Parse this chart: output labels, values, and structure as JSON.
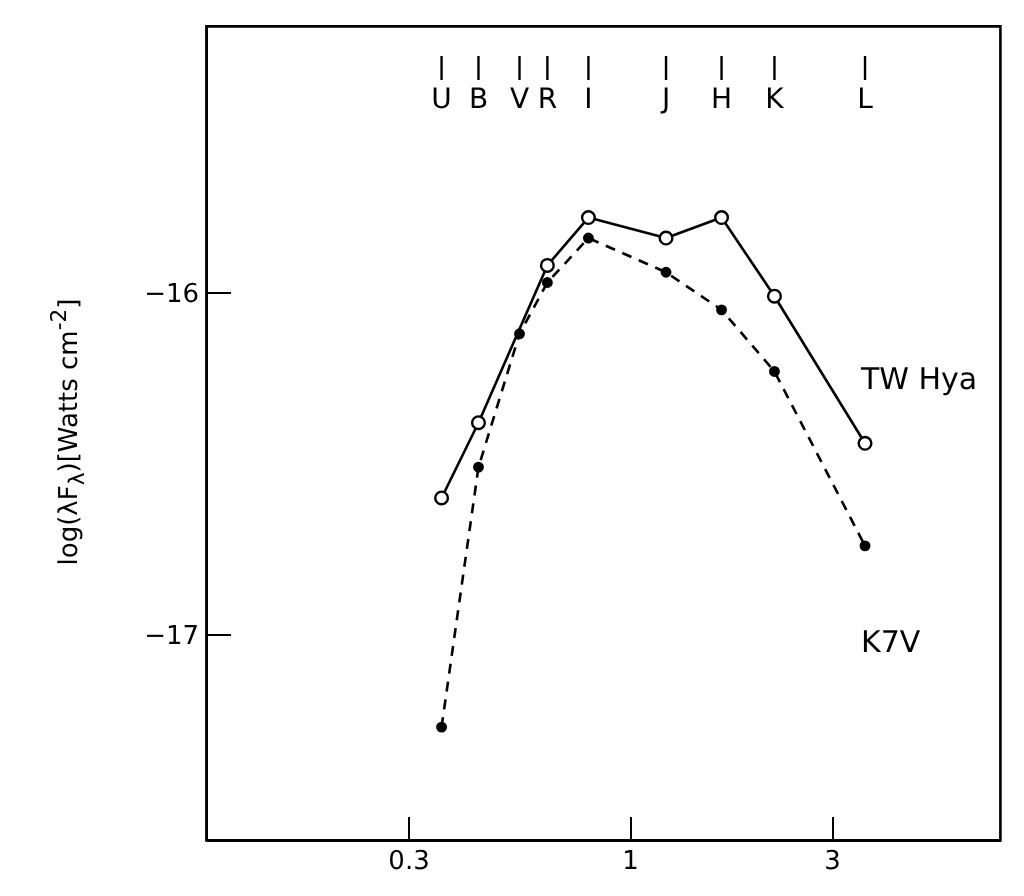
{
  "chart_data": {
    "type": "line",
    "ylabel": "log(λF$_{λ}$)[Watts cm$^{-2}$]",
    "xlim": [
      0.1,
      7.5
    ],
    "xticks": [
      0.3,
      1,
      3
    ],
    "log": "x",
    "ylim": [
      -17.6,
      -15.22
    ],
    "yticks": [
      -16,
      -17
    ],
    "ref_lines": [
      {
        "axis": "x",
        "value": 0.36,
        "label": "U"
      },
      {
        "axis": "x",
        "value": 0.44,
        "label": "B"
      },
      {
        "axis": "x",
        "value": 0.55,
        "label": "V"
      },
      {
        "axis": "x",
        "value": 0.64,
        "label": "R"
      },
      {
        "axis": "x",
        "value": 0.8,
        "label": "I"
      },
      {
        "axis": "x",
        "value": 1.22,
        "label": "J"
      },
      {
        "axis": "x",
        "value": 1.65,
        "label": "H"
      },
      {
        "axis": "x",
        "value": 2.2,
        "label": "K"
      },
      {
        "axis": "x",
        "value": 3.6,
        "label": "L"
      }
    ],
    "grid": false,
    "marker": "circle",
    "series": [
      {
        "name": "TW Hya",
        "color": "#000000",
        "line_style": "solid",
        "x": [
          0.36,
          0.44,
          0.64,
          0.8,
          1.22,
          1.65,
          2.2,
          3.6
        ],
        "values": [
          -16.6,
          -16.38,
          -15.92,
          -15.78,
          -15.84,
          -15.78,
          -16.01,
          -16.44
        ]
      },
      {
        "name": "K7V",
        "color": "#000000",
        "line_style": "dashed",
        "x": [
          0.36,
          0.44,
          0.55,
          0.64,
          0.8,
          1.22,
          1.65,
          2.2,
          3.6
        ],
        "values": [
          -17.27,
          -16.51,
          -16.12,
          -15.97,
          -15.84,
          -15.94,
          -16.05,
          -16.23,
          -16.74
        ]
      }
    ]
  }
}
